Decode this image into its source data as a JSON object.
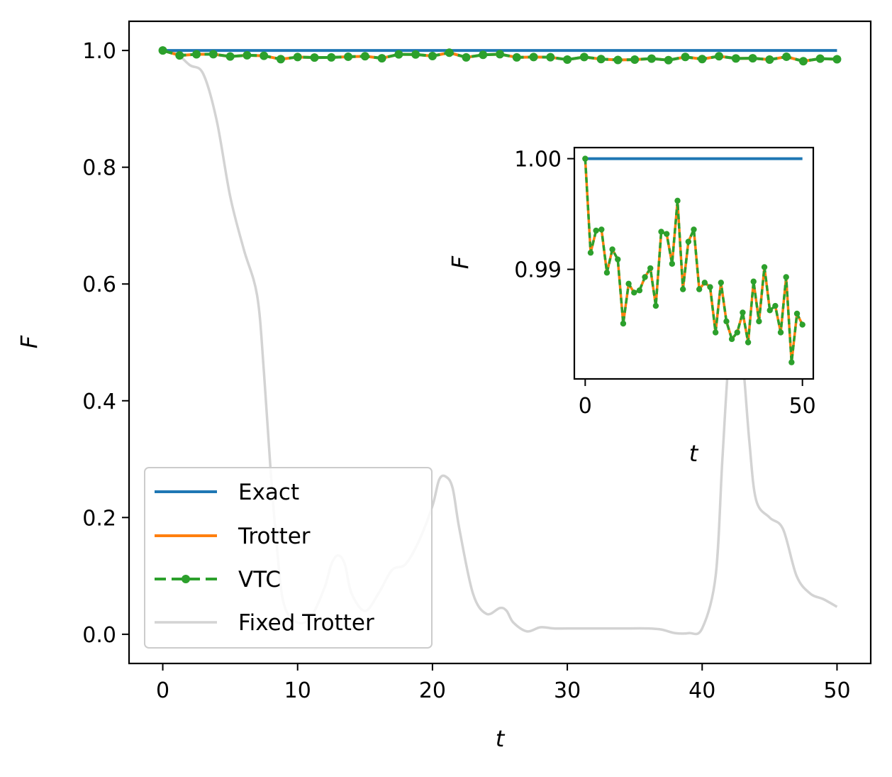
{
  "chart_data": [
    {
      "type": "line",
      "xlabel": "t",
      "ylabel": "F",
      "xlim": [
        -2.5,
        52.5
      ],
      "ylim": [
        -0.05,
        1.05
      ],
      "xticks": [
        0,
        10,
        20,
        30,
        40,
        50
      ],
      "xtick_labels": [
        "0",
        "10",
        "20",
        "30",
        "40",
        "50"
      ],
      "yticks": [
        0.0,
        0.2,
        0.4,
        0.6,
        0.8,
        1.0
      ],
      "ytick_labels": [
        "0.0",
        "0.2",
        "0.4",
        "0.6",
        "0.8",
        "1.0"
      ],
      "grid": false,
      "legend_position": "lower-left",
      "series": [
        {
          "name": "Exact",
          "color": "#1f77b4",
          "style": "solid",
          "x": [
            0,
            50
          ],
          "y": [
            1.0,
            1.0
          ]
        },
        {
          "name": "Trotter",
          "color": "#ff7f0e",
          "style": "solid",
          "x": [
            0,
            1.25,
            2.5,
            3.75,
            5,
            6.25,
            7.5,
            8.75,
            10,
            11.25,
            12.5,
            13.75,
            15,
            16.25,
            17.5,
            18.75,
            20,
            21.25,
            22.5,
            23.75,
            25,
            26.25,
            27.5,
            28.75,
            30,
            31.25,
            32.5,
            33.75,
            35,
            36.25,
            37.5,
            38.75,
            40,
            41.25,
            42.5,
            43.75,
            45,
            46.25,
            47.5,
            48.75,
            50
          ],
          "y": [
            1.0,
            0.9915,
            0.9935,
            0.9936,
            0.9897,
            0.9918,
            0.9909,
            0.9851,
            0.9887,
            0.9879,
            0.9881,
            0.9893,
            0.9901,
            0.9867,
            0.9934,
            0.9932,
            0.9905,
            0.9962,
            0.9882,
            0.9925,
            0.9936,
            0.9882,
            0.9888,
            0.9884,
            0.9843,
            0.9888,
            0.9853,
            0.9837,
            0.9843,
            0.9861,
            0.9834,
            0.9889,
            0.9853,
            0.9902,
            0.9863,
            0.9867,
            0.9843,
            0.9893,
            0.9816,
            0.986,
            0.985
          ]
        },
        {
          "name": "VTC",
          "color": "#2ca02c",
          "style": "dashed-with-markers",
          "x": [
            0,
            1.25,
            2.5,
            3.75,
            5,
            6.25,
            7.5,
            8.75,
            10,
            11.25,
            12.5,
            13.75,
            15,
            16.25,
            17.5,
            18.75,
            20,
            21.25,
            22.5,
            23.75,
            25,
            26.25,
            27.5,
            28.75,
            30,
            31.25,
            32.5,
            33.75,
            35,
            36.25,
            37.5,
            38.75,
            40,
            41.25,
            42.5,
            43.75,
            45,
            46.25,
            47.5,
            48.75,
            50
          ],
          "y": [
            1.0,
            0.9915,
            0.9935,
            0.9936,
            0.9897,
            0.9918,
            0.9909,
            0.9851,
            0.9887,
            0.9879,
            0.9881,
            0.9893,
            0.9901,
            0.9867,
            0.9934,
            0.9932,
            0.9905,
            0.9962,
            0.9882,
            0.9925,
            0.9936,
            0.9882,
            0.9888,
            0.9884,
            0.9843,
            0.9888,
            0.9853,
            0.9837,
            0.9843,
            0.9861,
            0.9834,
            0.9889,
            0.9853,
            0.9902,
            0.9863,
            0.9867,
            0.9843,
            0.9893,
            0.9816,
            0.986,
            0.985
          ]
        },
        {
          "name": "Fixed Trotter",
          "color": "#d3d3d3",
          "style": "solid",
          "x": [
            0,
            1,
            2,
            3,
            4,
            5,
            6,
            7,
            7.5,
            8,
            8.5,
            9,
            10,
            11,
            12,
            12.5,
            13,
            13.5,
            14,
            15,
            16,
            17,
            18,
            19,
            20,
            20.5,
            21,
            21.5,
            22,
            23,
            24,
            25,
            25.5,
            26,
            27,
            28,
            29,
            30,
            32,
            34,
            36,
            37,
            38,
            39,
            40,
            41,
            41.5,
            42,
            42.5,
            43,
            43.5,
            44,
            45,
            46,
            47,
            48,
            49,
            50
          ],
          "y": [
            1.0,
            0.995,
            0.975,
            0.96,
            0.88,
            0.75,
            0.66,
            0.58,
            0.45,
            0.28,
            0.14,
            0.05,
            0.02,
            0.03,
            0.08,
            0.12,
            0.135,
            0.12,
            0.07,
            0.04,
            0.07,
            0.11,
            0.12,
            0.16,
            0.22,
            0.265,
            0.27,
            0.25,
            0.18,
            0.07,
            0.035,
            0.045,
            0.04,
            0.02,
            0.005,
            0.012,
            0.01,
            0.01,
            0.01,
            0.01,
            0.01,
            0.008,
            0.002,
            0.002,
            0.01,
            0.1,
            0.3,
            0.48,
            0.53,
            0.47,
            0.33,
            0.23,
            0.2,
            0.18,
            0.1,
            0.07,
            0.06,
            0.047
          ]
        }
      ]
    },
    {
      "type": "line",
      "xlabel": "t",
      "ylabel": "F",
      "xlim": [
        -2.5,
        52.5
      ],
      "ylim": [
        0.9801,
        1.001
      ],
      "xticks": [
        0,
        50
      ],
      "xtick_labels": [
        "0",
        "50"
      ],
      "yticks": [
        0.99,
        1.0
      ],
      "ytick_labels": [
        "0.99",
        "1.00"
      ],
      "grid": false
    }
  ]
}
